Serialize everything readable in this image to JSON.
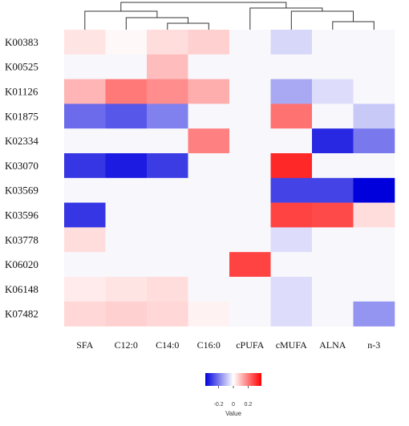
{
  "chart_data": {
    "type": "heatmap",
    "rows": [
      "K00383",
      "K00525",
      "K01126",
      "K01875",
      "K02334",
      "K03070",
      "K03569",
      "K03596",
      "K03778",
      "K06020",
      "K06148",
      "K07482"
    ],
    "columns": [
      "SFA",
      "C12:0",
      "C14:0",
      "C16:0",
      "cPUFA",
      "cMUFA",
      "ALNA",
      "n-3"
    ],
    "values": [
      [
        0.04,
        0.01,
        0.05,
        0.07,
        0.0,
        -0.06,
        0.0,
        0.0
      ],
      [
        0.0,
        0.0,
        0.1,
        0.0,
        0.0,
        0.0,
        0.0,
        0.0
      ],
      [
        0.11,
        0.2,
        0.17,
        0.12,
        0.0,
        -0.13,
        -0.05,
        0.0
      ],
      [
        -0.22,
        -0.25,
        -0.19,
        0.0,
        0.0,
        0.21,
        0.0,
        -0.08
      ],
      [
        0.0,
        0.0,
        0.0,
        0.19,
        0.0,
        0.0,
        -0.32,
        -0.2
      ],
      [
        -0.3,
        -0.34,
        -0.29,
        0.0,
        0.0,
        0.32,
        0.0,
        0.0
      ],
      [
        0.0,
        0.0,
        0.0,
        0.0,
        0.0,
        -0.28,
        -0.28,
        -0.38
      ],
      [
        -0.3,
        0.0,
        0.0,
        0.0,
        0.0,
        0.28,
        0.27,
        0.05
      ],
      [
        0.05,
        0.0,
        0.0,
        0.0,
        0.0,
        -0.05,
        0.0,
        0.0
      ],
      [
        0.0,
        0.0,
        0.0,
        0.0,
        0.28,
        0.0,
        0.0,
        0.0
      ],
      [
        0.03,
        0.04,
        0.05,
        0.0,
        0.0,
        -0.05,
        0.0,
        0.0
      ],
      [
        0.06,
        0.07,
        0.06,
        0.02,
        0.0,
        -0.05,
        0.0,
        -0.16
      ]
    ],
    "legend": {
      "title": "Value",
      "ticks": [
        "-0.2",
        "0",
        "0.2"
      ],
      "tick_values": [
        -0.2,
        0,
        0.2
      ],
      "range": [
        -0.38,
        0.38
      ]
    },
    "colors": {
      "low": "#0000dd",
      "mid": "#ffffff",
      "high": "#ff0000"
    },
    "column_dendrogram": true
  }
}
